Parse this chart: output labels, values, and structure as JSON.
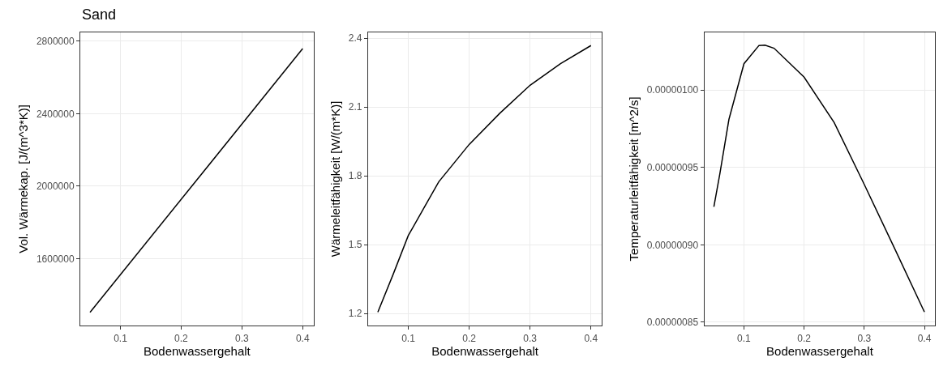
{
  "chart_data": [
    {
      "type": "line",
      "title": "Sand",
      "xlabel": "Bodenwassergehalt",
      "ylabel": "Vol. Wärmekap. [J/(m^3*K)]",
      "x": [
        0.05,
        0.4
      ],
      "series": [
        {
          "color": "#000000",
          "values": [
            1303000,
            2759000
          ]
        }
      ],
      "xlim": [
        0.034,
        0.418
      ],
      "xticks": [
        0.1,
        0.2,
        0.3,
        0.4
      ],
      "ylim": [
        1229000,
        2851000
      ],
      "yticks": [
        1600000,
        2000000,
        2400000,
        2800000
      ],
      "grid": true,
      "marker": "none",
      "line_style": "solid"
    },
    {
      "type": "line",
      "xlabel": "Bodenwassergehalt",
      "ylabel": "Wärmeleitfähigkeit [W/(m*K)]",
      "x": [
        0.05,
        0.075,
        0.1,
        0.15,
        0.2,
        0.25,
        0.3,
        0.35,
        0.4
      ],
      "series": [
        {
          "color": "#000000",
          "values": [
            1.206,
            1.37,
            1.54,
            1.774,
            1.937,
            2.072,
            2.195,
            2.289,
            2.368
          ]
        }
      ],
      "xlim": [
        0.034,
        0.418
      ],
      "xticks": [
        0.1,
        0.2,
        0.3,
        0.4
      ],
      "ylim": [
        1.147,
        2.427
      ],
      "yticks": [
        1.2,
        1.5,
        1.8,
        2.1,
        2.4
      ],
      "grid": true,
      "marker": "none",
      "line_style": "solid"
    },
    {
      "type": "line",
      "xlabel": "Bodenwassergehalt",
      "ylabel": "Temperaturleitfähigkeit [m^2/s]",
      "x": [
        0.05,
        0.06,
        0.075,
        0.1,
        0.125,
        0.135,
        0.15,
        0.2,
        0.25,
        0.3,
        0.35,
        0.4
      ],
      "series": [
        {
          "color": "#000000",
          "values": [
            9.246e-07,
            9.46e-07,
            9.81e-07,
            1.017e-06,
            1.0288e-06,
            1.029e-06,
            1.027e-06,
            1.0083e-06,
            9.79e-07,
            9.39e-07,
            8.98e-07,
            8.566e-07
          ]
        }
      ],
      "xlim": [
        0.034,
        0.418
      ],
      "xticks": [
        0.1,
        0.2,
        0.3,
        0.4
      ],
      "ylim": [
        8.477e-07,
        1.0375e-06
      ],
      "yticks": [
        {
          "value": 8.5e-07,
          "label": "0.00000085"
        },
        {
          "value": 9e-07,
          "label": "0.00000090"
        },
        {
          "value": 9.5e-07,
          "label": "0.00000095"
        },
        {
          "value": 1e-06,
          "label": "0.00000100"
        }
      ],
      "grid": true,
      "marker": "none",
      "line_style": "solid"
    }
  ]
}
